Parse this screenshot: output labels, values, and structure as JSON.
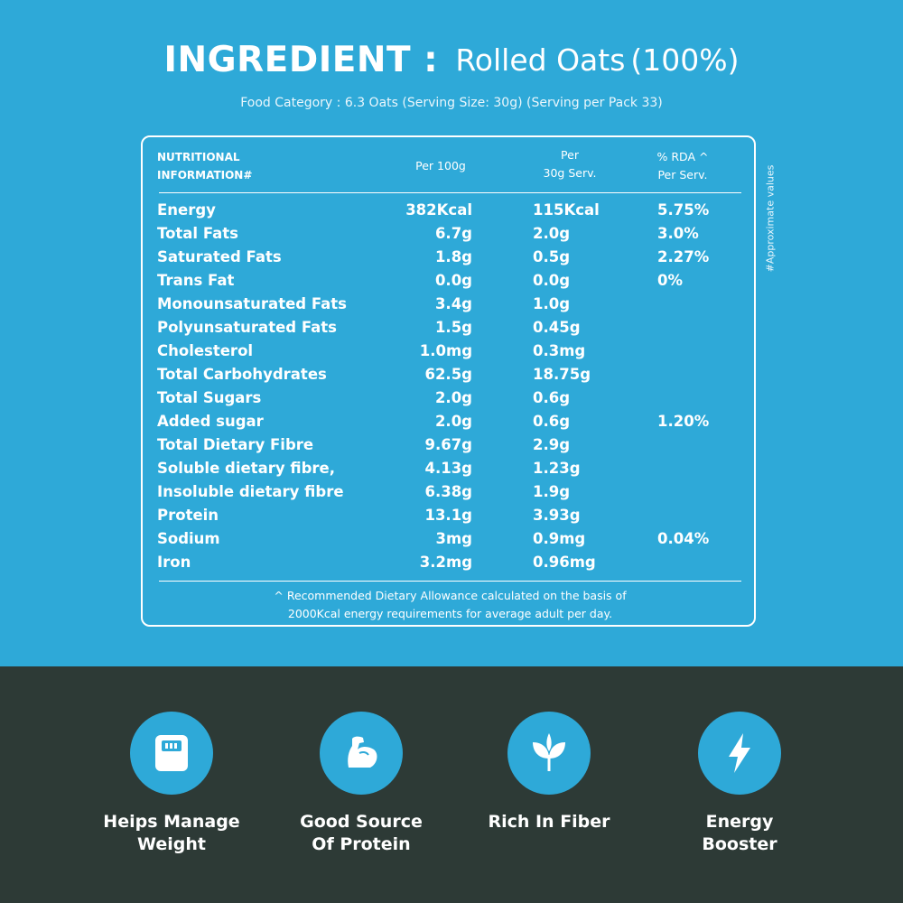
{
  "header": {
    "lead": "INGREDIENT :",
    "ingredient": "Rolled Oats",
    "percent": "(100%)",
    "subtitle": "Food Category : 6.3 Oats (Serving Size: 30g) (Serving per Pack 33)"
  },
  "side_note": "#Approximate values",
  "table": {
    "headers": {
      "name_line1": "NUTRITIONAL",
      "name_line2": "INFORMATION#",
      "per100": "Per 100g",
      "per30_line1": "Per",
      "per30_line2": "30g Serv.",
      "rda_line1": "% RDA ^",
      "rda_line2": "Per Serv."
    },
    "rows": [
      {
        "name": "Energy",
        "per100": "382Kcal",
        "per30": "115Kcal",
        "rda": "5.75%"
      },
      {
        "name": "Total Fats",
        "per100": "6.7g",
        "per30": "2.0g",
        "rda": "3.0%"
      },
      {
        "name": "Saturated Fats",
        "per100": "1.8g",
        "per30": "0.5g",
        "rda": "2.27%"
      },
      {
        "name": "Trans Fat",
        "per100": "0.0g",
        "per30": "0.0g",
        "rda": "0%"
      },
      {
        "name": "Monounsaturated Fats",
        "per100": "3.4g",
        "per30": "1.0g",
        "rda": ""
      },
      {
        "name": "Polyunsaturated Fats",
        "per100": "1.5g",
        "per30": "0.45g",
        "rda": ""
      },
      {
        "name": "Cholesterol",
        "per100": "1.0mg",
        "per30": "0.3mg",
        "rda": ""
      },
      {
        "name": "Total Carbohydrates",
        "per100": "62.5g",
        "per30": "18.75g",
        "rda": ""
      },
      {
        "name": "Total Sugars",
        "per100": "2.0g",
        "per30": "0.6g",
        "rda": ""
      },
      {
        "name": "Added sugar",
        "per100": "2.0g",
        "per30": "0.6g",
        "rda": "1.20%"
      },
      {
        "name": "Total Dietary Fibre",
        "per100": "9.67g",
        "per30": "2.9g",
        "rda": ""
      },
      {
        "name": "Soluble dietary fibre,",
        "per100": "4.13g",
        "per30": "1.23g",
        "rda": ""
      },
      {
        "name": "Insoluble dietary fibre",
        "per100": "6.38g",
        "per30": "1.9g",
        "rda": ""
      },
      {
        "name": "Protein",
        "per100": "13.1g",
        "per30": "3.93g",
        "rda": ""
      },
      {
        "name": "Sodium",
        "per100": "3mg",
        "per30": "0.9mg",
        "rda": "0.04%"
      },
      {
        "name": "Iron",
        "per100": "3.2mg",
        "per30": "0.96mg",
        "rda": ""
      }
    ],
    "footnote_line1": "^ Recommended Dietary Allowance calculated on the basis of",
    "footnote_line2": "2000Kcal energy requirements for average adult per day."
  },
  "features": [
    {
      "icon": "weighing-scale-icon",
      "line1": "Heips Manage",
      "line2": "Weight"
    },
    {
      "icon": "flexed-arm-icon",
      "line1": "Good Source",
      "line2": "Of Protein"
    },
    {
      "icon": "leaves-icon",
      "line1": "Rich In Fiber",
      "line2": ""
    },
    {
      "icon": "lightning-bolt-icon",
      "line1": "Energy",
      "line2": "Booster"
    }
  ],
  "colors": {
    "top_background": "#2ea9d8",
    "bottom_background": "#2d3a36",
    "text": "#ffffff"
  }
}
